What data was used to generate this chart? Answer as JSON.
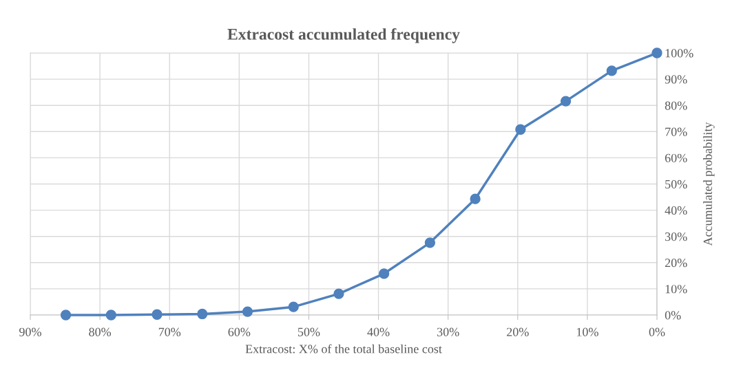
{
  "chart_data": {
    "type": "line",
    "title": "Extracost accumulated frequency",
    "xlabel": "Extracost: X% of the total baseline cost",
    "ylabel": "Accumulated probability",
    "x": [
      84.9,
      78.4,
      71.8,
      65.3,
      58.8,
      52.2,
      45.7,
      39.2,
      32.6,
      26.1,
      19.6,
      13.1,
      6.5,
      0
    ],
    "series": [
      {
        "color": "#4f81bd",
        "values": [
          0,
          0,
          0.2,
          0.4,
          1.3,
          3.1,
          8.1,
          15.8,
          27.6,
          44.3,
          70.8,
          81.6,
          93.2,
          100
        ]
      }
    ],
    "xlim": [
      90,
      0
    ],
    "xticks": [
      {
        "value": 90,
        "label": "90%"
      },
      {
        "value": 80,
        "label": "80%"
      },
      {
        "value": 70,
        "label": "70%"
      },
      {
        "value": 60,
        "label": "60%"
      },
      {
        "value": 50,
        "label": "50%"
      },
      {
        "value": 40,
        "label": "40%"
      },
      {
        "value": 30,
        "label": "30%"
      },
      {
        "value": 20,
        "label": "20%"
      },
      {
        "value": 10,
        "label": "10%"
      },
      {
        "value": 0,
        "label": "0%"
      }
    ],
    "ylim": [
      0,
      100
    ],
    "yticks": [
      {
        "value": 0,
        "label": "0%"
      },
      {
        "value": 10,
        "label": "10%"
      },
      {
        "value": 20,
        "label": "20%"
      },
      {
        "value": 30,
        "label": "30%"
      },
      {
        "value": 40,
        "label": "40%"
      },
      {
        "value": 50,
        "label": "50%"
      },
      {
        "value": 60,
        "label": "60%"
      },
      {
        "value": 70,
        "label": "70%"
      },
      {
        "value": 80,
        "label": "80%"
      },
      {
        "value": 90,
        "label": "90%"
      },
      {
        "value": 100,
        "label": "100%"
      }
    ],
    "grid": true,
    "marker": "circle",
    "line_style": "solid",
    "legend": false
  }
}
